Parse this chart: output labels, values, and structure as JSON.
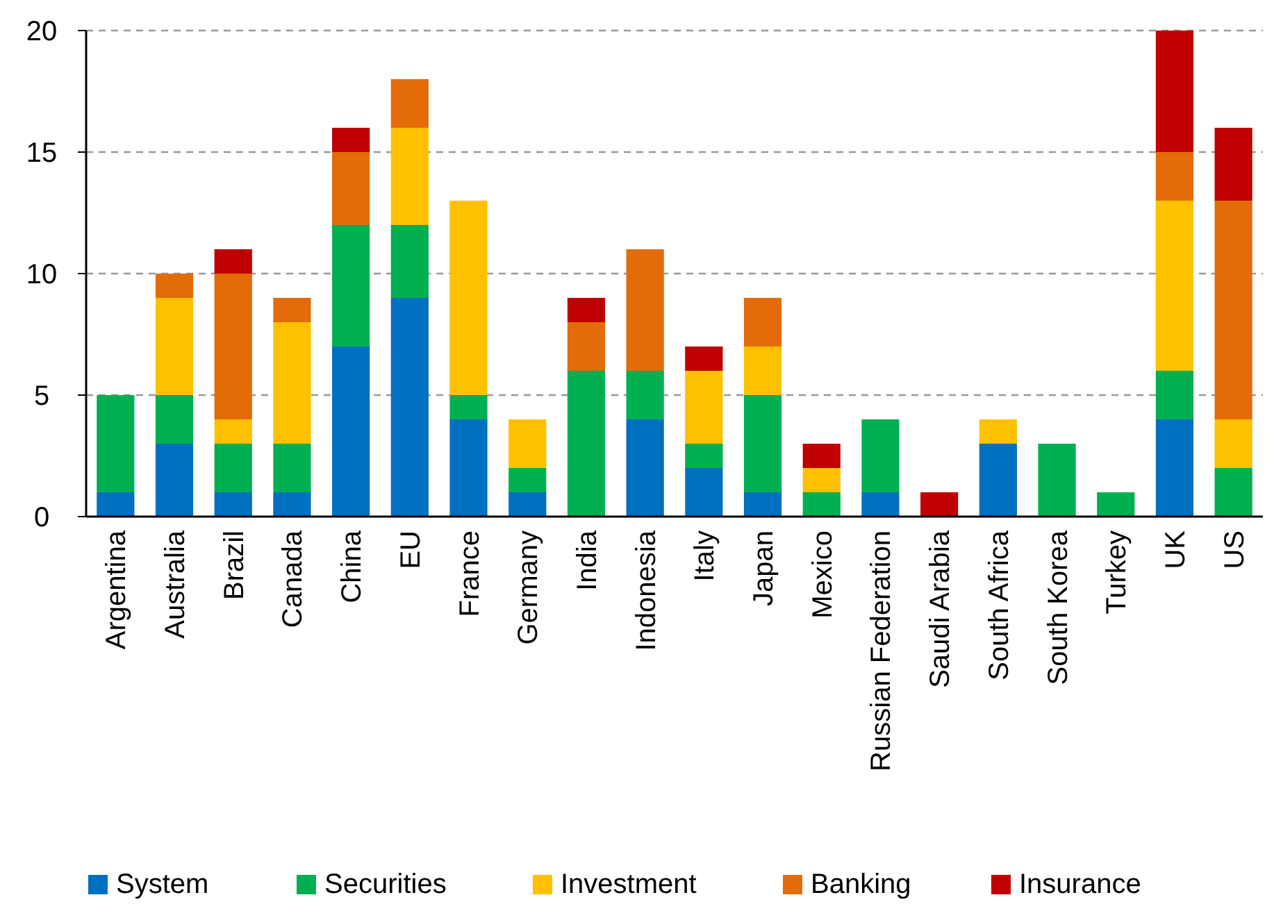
{
  "chart_data": {
    "type": "bar",
    "stacked": true,
    "categories": [
      "Argentina",
      "Australia",
      "Brazil",
      "Canada",
      "China",
      "EU",
      "France",
      "Germany",
      "India",
      "Indonesia",
      "Italy",
      "Japan",
      "Mexico",
      "Russian Federation",
      "Saudi Arabia",
      "South Africa",
      "South Korea",
      "Turkey",
      "UK",
      "US"
    ],
    "series": [
      {
        "name": "System",
        "color": "#0070c0",
        "values": [
          1,
          3,
          1,
          1,
          7,
          9,
          4,
          1,
          0,
          4,
          2,
          1,
          0,
          1,
          0,
          3,
          0,
          0,
          4,
          0
        ]
      },
      {
        "name": "Securities",
        "color": "#00b050",
        "values": [
          4,
          2,
          2,
          2,
          5,
          3,
          1,
          1,
          6,
          2,
          1,
          4,
          1,
          3,
          0,
          0,
          3,
          1,
          2,
          2
        ]
      },
      {
        "name": "Investment",
        "color": "#ffc000",
        "values": [
          0,
          4,
          1,
          5,
          0,
          4,
          8,
          2,
          0,
          0,
          3,
          2,
          1,
          0,
          0,
          1,
          0,
          0,
          7,
          2
        ]
      },
      {
        "name": "Banking",
        "color": "#e36c09",
        "values": [
          0,
          1,
          6,
          1,
          3,
          2,
          0,
          0,
          2,
          5,
          0,
          2,
          0,
          0,
          0,
          0,
          0,
          0,
          2,
          9
        ]
      },
      {
        "name": "Insurance",
        "color": "#c00000",
        "values": [
          0,
          0,
          1,
          0,
          1,
          0,
          0,
          0,
          1,
          0,
          1,
          0,
          1,
          0,
          1,
          0,
          0,
          0,
          5,
          3
        ]
      }
    ],
    "ylim": [
      0,
      20
    ],
    "yticks": [
      0,
      5,
      10,
      15,
      20
    ],
    "grid": "y",
    "legend": "bottom"
  }
}
